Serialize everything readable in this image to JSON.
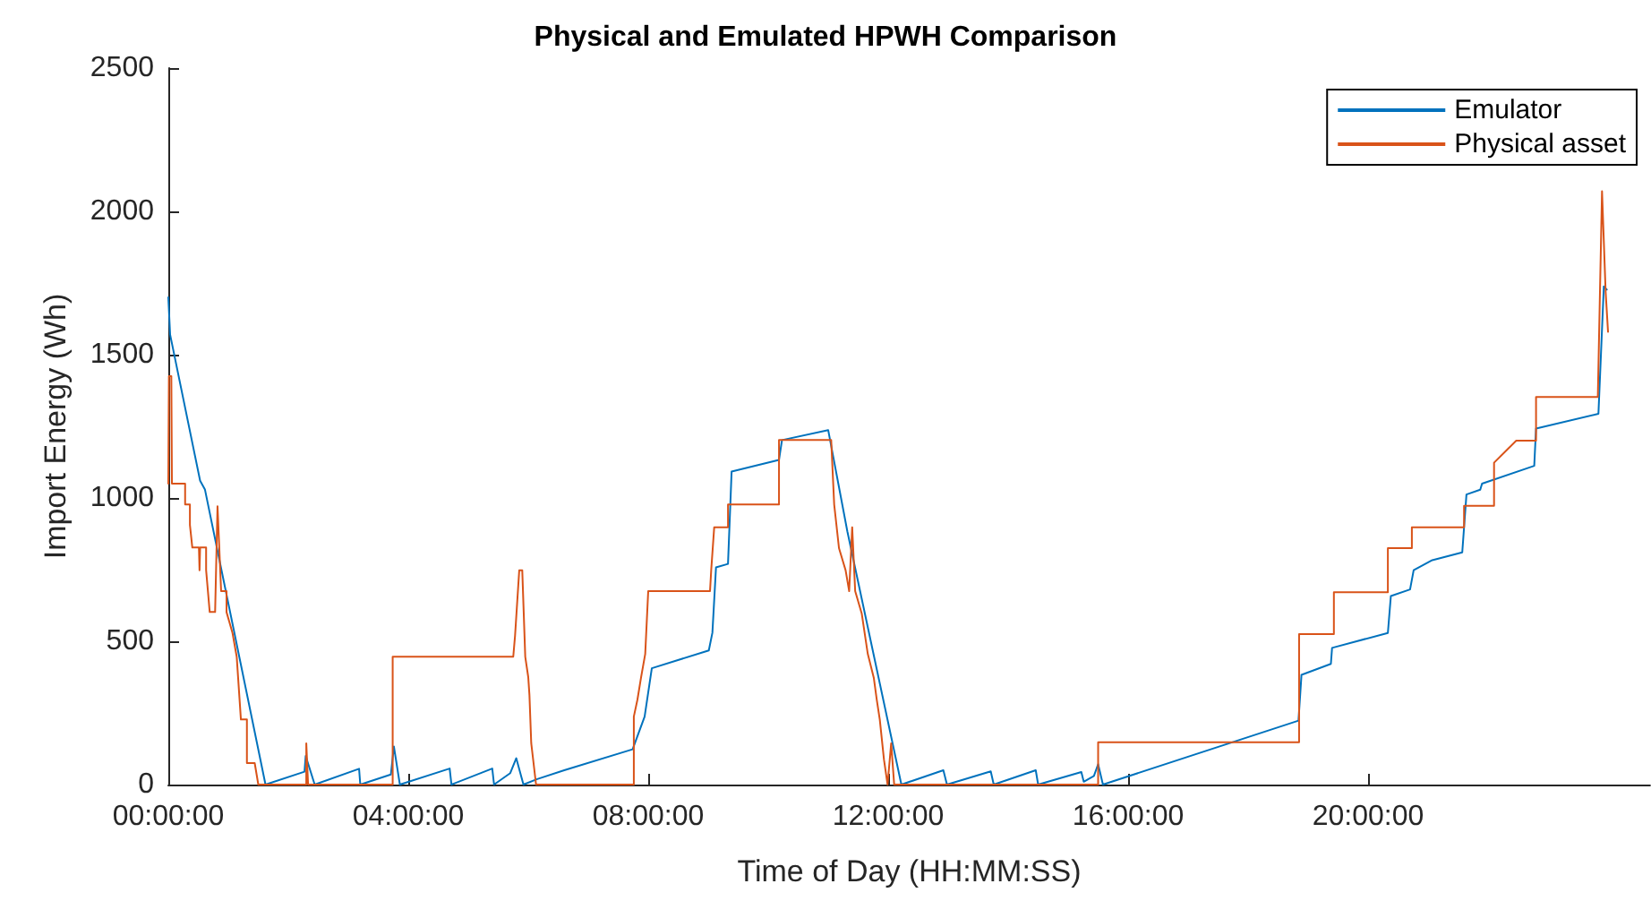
{
  "chart_data": {
    "type": "line",
    "title": "Physical and Emulated HPWH Comparison",
    "xlabel": "Time of Day (HH:MM:SS)",
    "ylabel": "Import Energy (Wh)",
    "xlim": [
      0,
      24.7
    ],
    "xticks": [
      {
        "value": 0,
        "label": "00:00:00"
      },
      {
        "value": 4,
        "label": "04:00:00"
      },
      {
        "value": 8,
        "label": "08:00:00"
      },
      {
        "value": 12,
        "label": "12:00:00"
      },
      {
        "value": 16,
        "label": "16:00:00"
      },
      {
        "value": 20,
        "label": "20:00:00"
      }
    ],
    "ylim": [
      0,
      2500
    ],
    "yticks": [
      0,
      500,
      1000,
      1500,
      2000,
      2500
    ],
    "grid": false,
    "legend": "top right",
    "marker": "none",
    "line_style": "solid",
    "series": [
      {
        "name": "Emulator",
        "color": "#0072bd",
        "x": [
          0,
          0.03,
          0.53,
          0.61,
          1.62,
          2.27,
          2.29,
          2.44,
          3.18,
          3.2,
          3.71,
          3.76,
          3.86,
          4.69,
          4.72,
          5.4,
          5.43,
          5.7,
          5.8,
          5.92,
          6.15,
          6.6,
          7.74,
          7.94,
          8.06,
          9.01,
          9.07,
          9.13,
          9.33,
          9.39,
          10.18,
          10.23,
          11.0,
          11.32,
          12.22,
          12.92,
          12.98,
          13.71,
          13.76,
          14.46,
          14.5,
          15.22,
          15.26,
          15.43,
          15.5,
          15.58,
          18.84,
          18.89,
          19.38,
          19.4,
          20.33,
          20.38,
          20.7,
          20.76,
          21.07,
          21.57,
          21.64,
          21.87,
          21.9,
          22.77,
          22.8,
          23.84,
          23.93,
          23.98
        ],
        "values": [
          1700,
          1570,
          1060,
          1030,
          0,
          45,
          100,
          0,
          55,
          0,
          35,
          133,
          0,
          56,
          0,
          56,
          0,
          40,
          92,
          0,
          19,
          50,
          123,
          237,
          406,
          468,
          530,
          758,
          770,
          1092,
          1133,
          1202,
          1237,
          883,
          0,
          50,
          0,
          46,
          0,
          50,
          0,
          44,
          10,
          30,
          71,
          0,
          223,
          383,
          421,
          477,
          529,
          658,
          681,
          748,
          783,
          810,
          1012,
          1029,
          1050,
          1112,
          1242,
          1294,
          1738,
          1727
        ]
      },
      {
        "name": "Physical asset",
        "color": "#d95319",
        "x": [
          0,
          0.01,
          0.05,
          0.06,
          0.28,
          0.28,
          0.36,
          0.36,
          0.4,
          0.51,
          0.52,
          0.53,
          0.63,
          0.63,
          0.69,
          0.78,
          0.82,
          0.88,
          0.97,
          0.97,
          1.07,
          1.14,
          1.21,
          1.31,
          1.31,
          1.44,
          1.5,
          2.3,
          2.3,
          2.33,
          3.74,
          3.74,
          5.75,
          5.78,
          5.85,
          5.9,
          5.95,
          6.0,
          6.02,
          6.05,
          6.13,
          7.76,
          7.76,
          7.82,
          7.88,
          7.95,
          8.0,
          9.03,
          9.05,
          9.1,
          9.33,
          9.33,
          10.18,
          10.18,
          11.05,
          11.1,
          11.18,
          11.29,
          11.35,
          11.4,
          11.45,
          11.56,
          11.66,
          11.76,
          11.81,
          11.86,
          11.93,
          11.99,
          12.05,
          12.1,
          15.5,
          15.5,
          18.85,
          18.85,
          19.43,
          19.43,
          20.33,
          20.33,
          20.73,
          20.73,
          21.6,
          21.6,
          22.1,
          22.1,
          22.47,
          22.8,
          22.8,
          23.83,
          23.9,
          23.96,
          24.0
        ],
        "values": [
          1050,
          1425,
          1425,
          1050,
          1050,
          977,
          977,
          906,
          827,
          827,
          748,
          827,
          827,
          748,
          602,
          602,
          971,
          675,
          675,
          602,
          529,
          446,
          227,
          227,
          75,
          75,
          0,
          0,
          144,
          0,
          0,
          446,
          446,
          519,
          748,
          748,
          446,
          375,
          312,
          144,
          0,
          0,
          237,
          296,
          373,
          456,
          675,
          675,
          748,
          898,
          898,
          977,
          977,
          1202,
          1202,
          977,
          825,
          748,
          675,
          898,
          675,
          596,
          456,
          373,
          296,
          227,
          87,
          0,
          144,
          0,
          0,
          148,
          148,
          525,
          525,
          671,
          671,
          825,
          825,
          898,
          898,
          973,
          973,
          1123,
          1200,
          1200,
          1352,
          1352,
          2070,
          1720,
          1580
        ]
      }
    ]
  }
}
